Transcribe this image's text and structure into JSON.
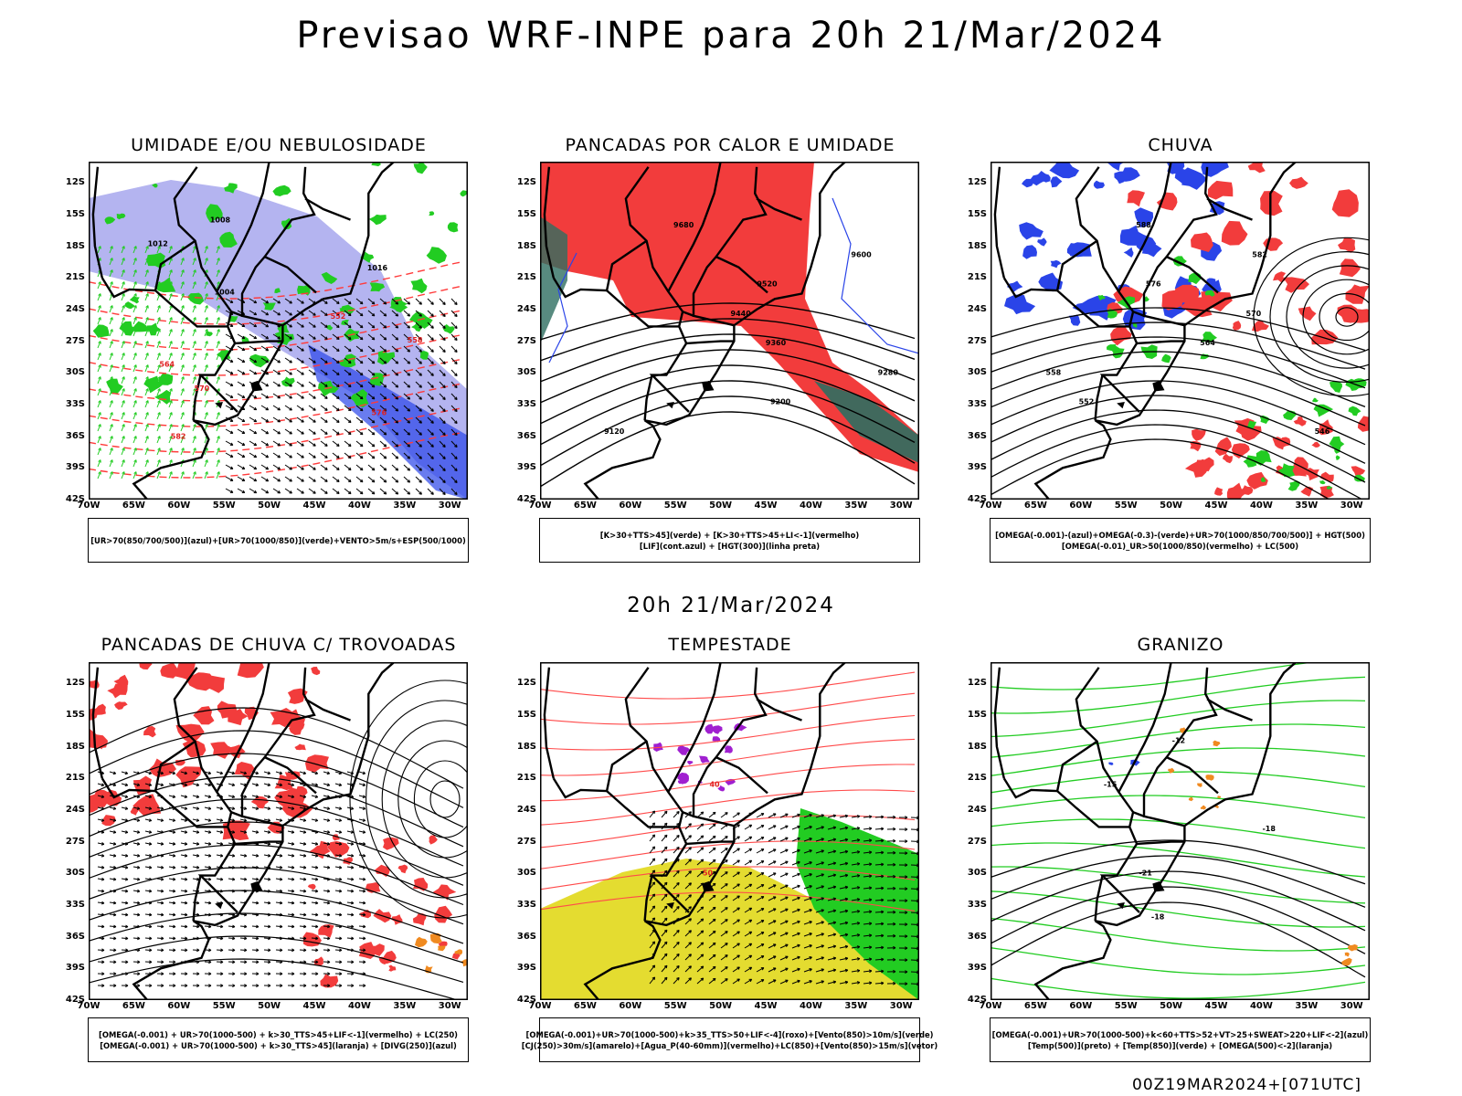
{
  "main_title": "Previsao WRF-INPE  para 20h 21/Mar/2024",
  "mid_title": "20h 21/Mar/2024",
  "footer_stamp": "00Z19MAR2024+[071UTC]",
  "latitude_ticks": [
    "12S",
    "15S",
    "18S",
    "21S",
    "24S",
    "27S",
    "30S",
    "33S",
    "36S",
    "39S",
    "42S"
  ],
  "longitude_ticks": [
    "70W",
    "65W",
    "60W",
    "55W",
    "50W",
    "45W",
    "40W",
    "35W",
    "30W"
  ],
  "colors": {
    "red": "#f23c3c",
    "green": "#22cc22",
    "blue": "#2a44e8",
    "lavender": "#b4b4f0",
    "yellow": "#e4dc30",
    "orange": "#f08a20",
    "purple": "#a020d0",
    "dark_teal": "#2e6e60"
  },
  "panels": [
    {
      "id": "umidade",
      "title": "UMIDADE E/OU NEBULOSIDADE",
      "legend": [
        "[UR>70(850/700/500)](azul)+[UR>70(1000/850)](verde)+VENTO>5m/s+ESP(500/1000)"
      ],
      "contour_labels": [
        "1008",
        "1012",
        "1016",
        "1004",
        "552",
        "558",
        "564",
        "570",
        "576",
        "582"
      ]
    },
    {
      "id": "pancadas-calor",
      "title": "PANCADAS POR CALOR E UMIDADE",
      "legend": [
        "[K>30+TTS>45](verde) + [K>30+TTS>45+LI<-1](vermelho)",
        "[LIF](cont.azul) + [HGT(300)](linha preta)"
      ],
      "contour_labels": [
        "9680",
        "9600",
        "9520",
        "9440",
        "9360",
        "9280",
        "9200",
        "9120"
      ]
    },
    {
      "id": "chuva",
      "title": "CHUVA",
      "legend": [
        "[OMEGA(-0.001)-(azul)+OMEGA(-0.3)-(verde)+UR>70(1000/850/700/500)] + HGT(500)",
        "[OMEGA(-0.01)_UR>50(1000/850)(vermelho) + LC(500)"
      ],
      "contour_labels": [
        "588",
        "582",
        "576",
        "570",
        "564",
        "558",
        "552",
        "546"
      ]
    },
    {
      "id": "pancadas-trovoadas",
      "title": "PANCADAS DE CHUVA C/ TROVOADAS",
      "legend": [
        "[OMEGA(-0.001) + UR>70(1000-500) + k>30_TTS>45+LIF<-1](vermelho) + LC(250)",
        "[OMEGA(-0.001) + UR>70(1000-500) + k>30_TTS>45](laranja) + [DIVG(250)](azul)"
      ],
      "contour_labels": []
    },
    {
      "id": "tempestade",
      "title": "TEMPESTADE",
      "legend": [
        "[OMEGA(-0.001)+UR>70(1000-500)+k>35_TTS>50+LIF<-4](roxo)+[Vento(850)>10m/s](verde)",
        "[CJ(250)>30m/s](amarelo)+[Agua_P(40-60mm)](vermelho)+LC(850)+[Vento(850)>15m/s](vetor)"
      ],
      "contour_labels": [
        "40",
        "50"
      ]
    },
    {
      "id": "granizo",
      "title": "GRANIZO",
      "legend": [
        "[OMEGA(-0.001)+UR>70(1000-500)+k<60+TTS>52+VT>25+SWEAT>220+LIF<-2](azul)",
        "[Temp(500)](preto) + [Temp(850)](verde) + [OMEGA(500)<-2](laranja)"
      ],
      "contour_labels": [
        "-12",
        "-15",
        "-18",
        "-21",
        "-18"
      ]
    }
  ]
}
